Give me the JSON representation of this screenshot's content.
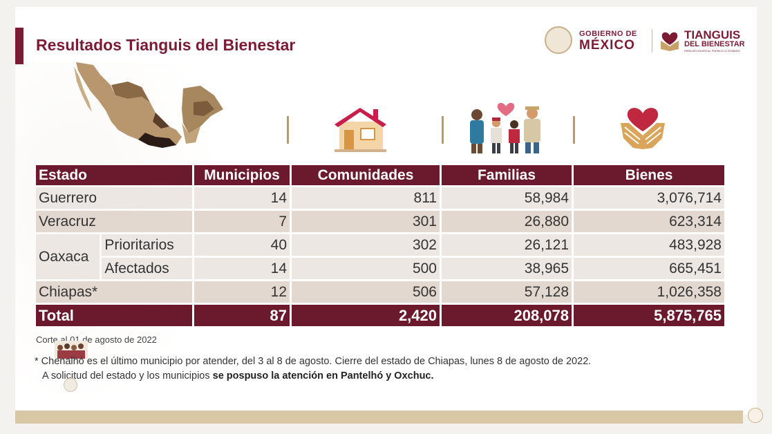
{
  "header": {
    "title": "Resultados Tianguis del Bienestar",
    "gov_logo_small": "GOBIERNO DE",
    "gov_logo_big": "MÉXICO",
    "program_logo_line1": "TIANGUIS",
    "program_logo_line2": "DEL BIENESTAR",
    "program_logo_line3": "PARA DEVOLVER AL PUEBLO LO ROBADO"
  },
  "icons": {
    "map": "mexico-map-icon",
    "house": "house-icon",
    "family": "family-icon",
    "goods": "heart-hands-icon"
  },
  "table": {
    "headers": {
      "estado": "Estado",
      "municipios": "Municipios",
      "comunidades": "Comunidades",
      "familias": "Familias",
      "bienes": "Bienes"
    },
    "rows": [
      {
        "estado": "Guerrero",
        "municipios": "14",
        "comunidades": "811",
        "familias": "58,984",
        "bienes": "3,076,714"
      },
      {
        "estado": "Veracruz",
        "municipios": "7",
        "comunidades": "301",
        "familias": "26,880",
        "bienes": "623,314"
      },
      {
        "estado": "Oaxaca",
        "sub": "Prioritarios",
        "municipios": "40",
        "comunidades": "302",
        "familias": "26,121",
        "bienes": "483,928"
      },
      {
        "estado": "Oaxaca",
        "sub": "Afectados",
        "municipios": "14",
        "comunidades": "500",
        "familias": "38,965",
        "bienes": "665,451"
      },
      {
        "estado": "Chiapas*",
        "municipios": "12",
        "comunidades": "506",
        "familias": "57,128",
        "bienes": "1,026,358"
      }
    ],
    "total": {
      "label": "Total",
      "municipios": "87",
      "comunidades": "2,420",
      "familias": "208,078",
      "bienes": "5,875,765"
    }
  },
  "notes": {
    "corte": "Corte al 01 de agosto de 2022",
    "footnote1": "* Chenalhó es el último municipio por atender, del 3 al 8 de agosto. Cierre del estado de Chiapas, lunes 8 de agosto de 2022.",
    "footnote2_plain": "A solicitud del estado y los municipios ",
    "footnote2_bold": "se pospuso la atención en Pantelhó y Oxchuc."
  },
  "colors": {
    "brand": "#7b1c34",
    "header_bg": "#6b1a2e",
    "row_light": "#ece7e3",
    "row_dark": "#e2d8d0",
    "gold": "#b99a68"
  }
}
